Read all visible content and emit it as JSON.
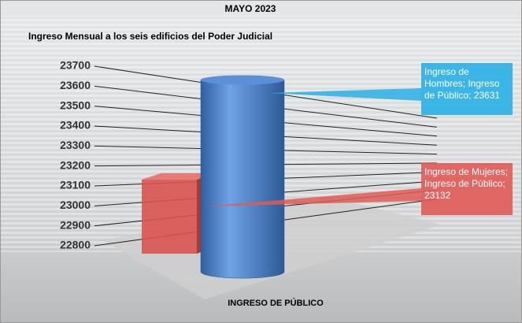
{
  "chart_data": {
    "type": "bar3d",
    "title": "MAYO 2023",
    "subtitle": "Ingreso Mensual a los seis edificios del Poder Judicial",
    "x_label": "INGRESO DE PÚBLICO",
    "categories": [
      "INGRESO DE PÚBLICO"
    ],
    "series": [
      {
        "color": "#d9534f",
        "values": [
          23132
        ],
        "value_labels": [
          "Ingreso de Mujeres; Ingreso de Público; 23132"
        ]
      },
      {
        "color": "#4a86d0",
        "values": [
          23631
        ],
        "value_labels": [
          "Ingreso de Hombres; Ingreso de Público; 23631"
        ]
      }
    ],
    "ylim": [
      22800,
      23700
    ],
    "yticks": [
      22800,
      22900,
      23000,
      23100,
      23200,
      23300,
      23400,
      23500,
      23600,
      23700
    ],
    "grid": true
  }
}
